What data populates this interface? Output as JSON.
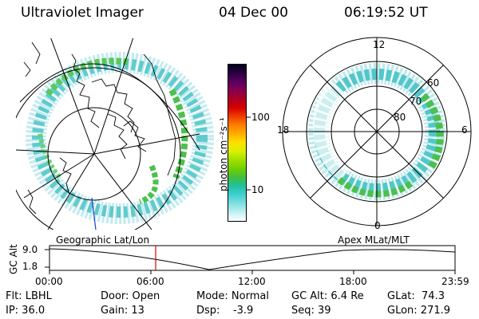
{
  "header": {
    "instrument": "Ultraviolet Imager",
    "date": "04 Dec 00",
    "time": "06:19:52 UT"
  },
  "colorbar": {
    "unit_label": "photon cm⁻²s⁻¹",
    "ticks": [
      "100",
      "10"
    ],
    "colors": [
      "#000020",
      "#2a0040",
      "#5a0060",
      "#880050",
      "#b00020",
      "#d80000",
      "#f04000",
      "#ff8000",
      "#ffb000",
      "#ffe000",
      "#d8f000",
      "#a0e000",
      "#70d000",
      "#40c040",
      "#20c0a0",
      "#40d0d0",
      "#80e0e0",
      "#c0f0f0",
      "#ffffff"
    ]
  },
  "left_map": {
    "caption": "Geographic Lat/Lon"
  },
  "right_map": {
    "caption": "Apex MLat/MLT",
    "mlt_labels": {
      "top": "12",
      "left": "18",
      "right": "6",
      "bottom": "0"
    },
    "lat_labels": [
      "80",
      "70",
      "60"
    ]
  },
  "altitude_plot": {
    "ylabel": "GC Alt",
    "yticks": [
      "9.0",
      "1.8"
    ],
    "xticks": [
      "00:00",
      "06:00",
      "12:00",
      "18:00",
      "23:59"
    ],
    "marker_color": "#e00000"
  },
  "status": {
    "row1": [
      "Flt: LBHL",
      "Door: Open",
      "Mode: Normal",
      "GC Alt: 6.4 Re",
      "GLat:  74.3"
    ],
    "row2": [
      "IP: 36.0",
      "Gain: 13",
      "Dsp:    -3.9",
      "Seq: 39",
      "GLon: 271.9"
    ]
  }
}
